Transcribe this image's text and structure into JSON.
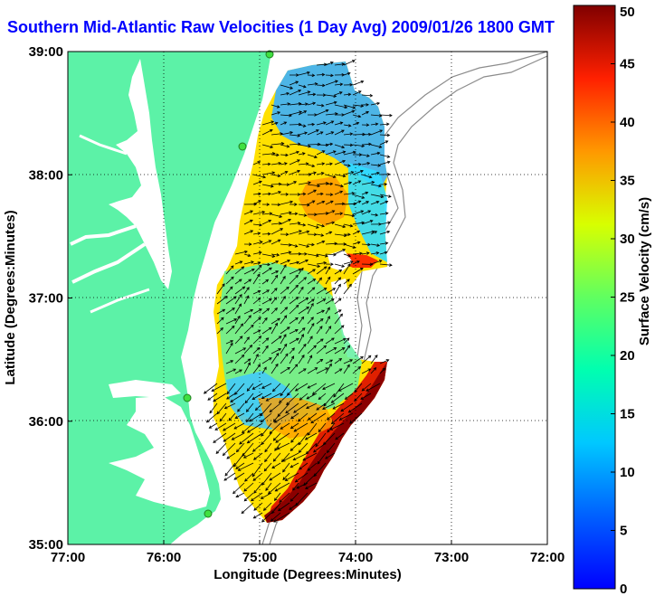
{
  "title": "Southern Mid-Atlantic Raw Velocities (1 Day Avg) 2009/01/26 1800 GMT",
  "chart_data": {
    "type": "heatmap",
    "xlabel": "Longitude (Degrees:Minutes)",
    "ylabel": "Latitude (Degrees:Minutes)",
    "xlim": [
      -77,
      -72
    ],
    "ylim": [
      35,
      39
    ],
    "x_ticks": [
      {
        "value": -77,
        "label": "77:00"
      },
      {
        "value": -76,
        "label": "76:00"
      },
      {
        "value": -75,
        "label": "75:00"
      },
      {
        "value": -74,
        "label": "74:00"
      },
      {
        "value": -73,
        "label": "73:00"
      },
      {
        "value": -72,
        "label": "72:00"
      }
    ],
    "y_ticks": [
      {
        "value": 35,
        "label": "35:00"
      },
      {
        "value": 36,
        "label": "36:00"
      },
      {
        "value": 37,
        "label": "37:00"
      },
      {
        "value": 38,
        "label": "38:00"
      },
      {
        "value": 39,
        "label": "39:00"
      }
    ],
    "grid": true,
    "colorbar": {
      "label": "Surface Velocity (cm/s)",
      "min": 0,
      "max": 50,
      "ticks": [
        0,
        5,
        10,
        15,
        20,
        25,
        30,
        35,
        40,
        45,
        50
      ],
      "colormap": "jet"
    },
    "colors": {
      "land": "#5cf2a7",
      "vector": "#000000",
      "grid": "#000000",
      "bathymetry": "#8c8c8c"
    }
  }
}
